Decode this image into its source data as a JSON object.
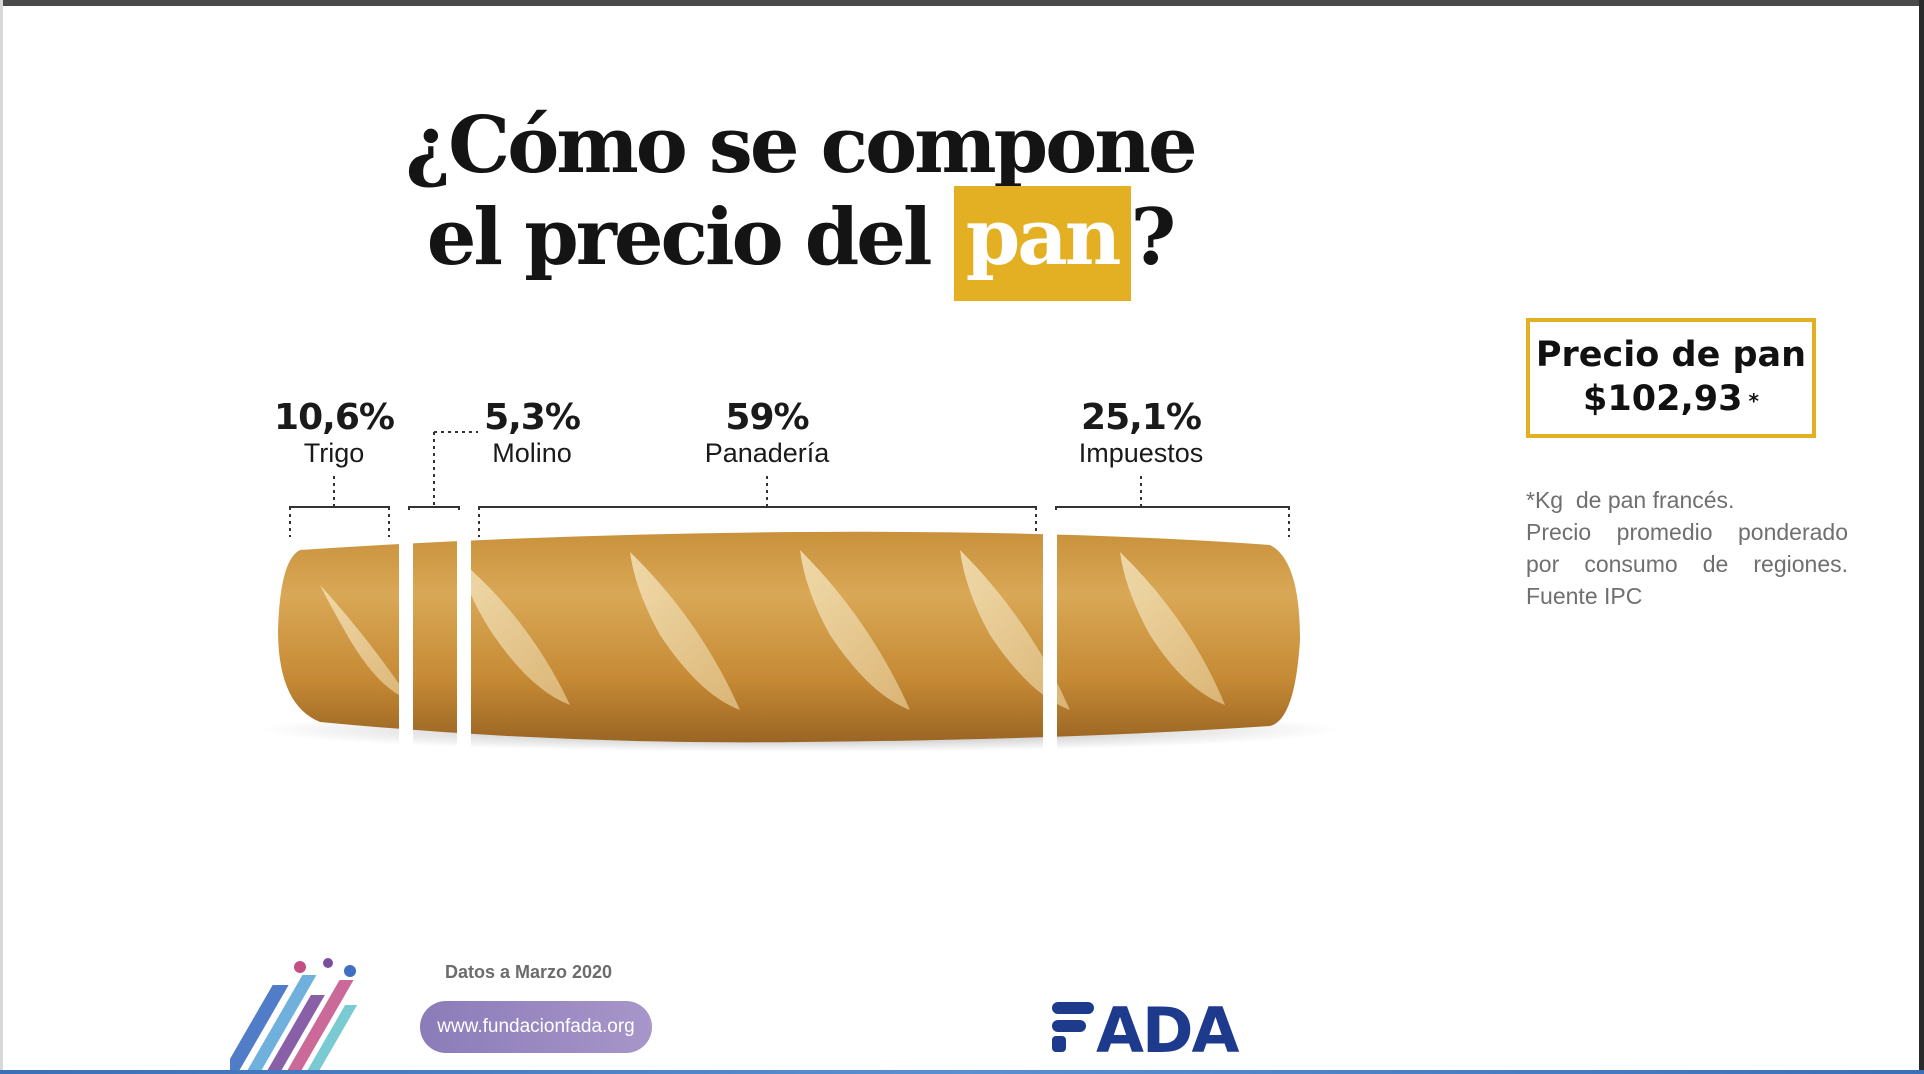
{
  "title": {
    "line1": "¿Cómo se compone",
    "line2_prefix": "el precio del ",
    "highlight": "pan",
    "line2_suffix": "?"
  },
  "segments": [
    {
      "percent": "10,6%",
      "name": "Trigo"
    },
    {
      "percent": "5,3%",
      "name": "Molino"
    },
    {
      "percent": "59%",
      "name": "Panadería"
    },
    {
      "percent": "25,1%",
      "name": "Impuestos"
    }
  ],
  "price_box": {
    "line1": "Precio de pan",
    "value": "$102,93",
    "asterisk": "*"
  },
  "note": {
    "line1": "*Kg  de pan francés.",
    "line2": "Precio promedio ponderado",
    "line3": "por consumo de regiones.",
    "line4": "Fuente IPC"
  },
  "footer": {
    "date": "Datos a Marzo 2020",
    "url": "www.fundacionfada.org",
    "logo": "FADA"
  },
  "colors": {
    "accent": "#e3af23",
    "logo_blue": "#1d3a8c",
    "url_pill": "#9a88c1"
  },
  "icons": {
    "decoration": "colorful-stripes-graphic"
  }
}
